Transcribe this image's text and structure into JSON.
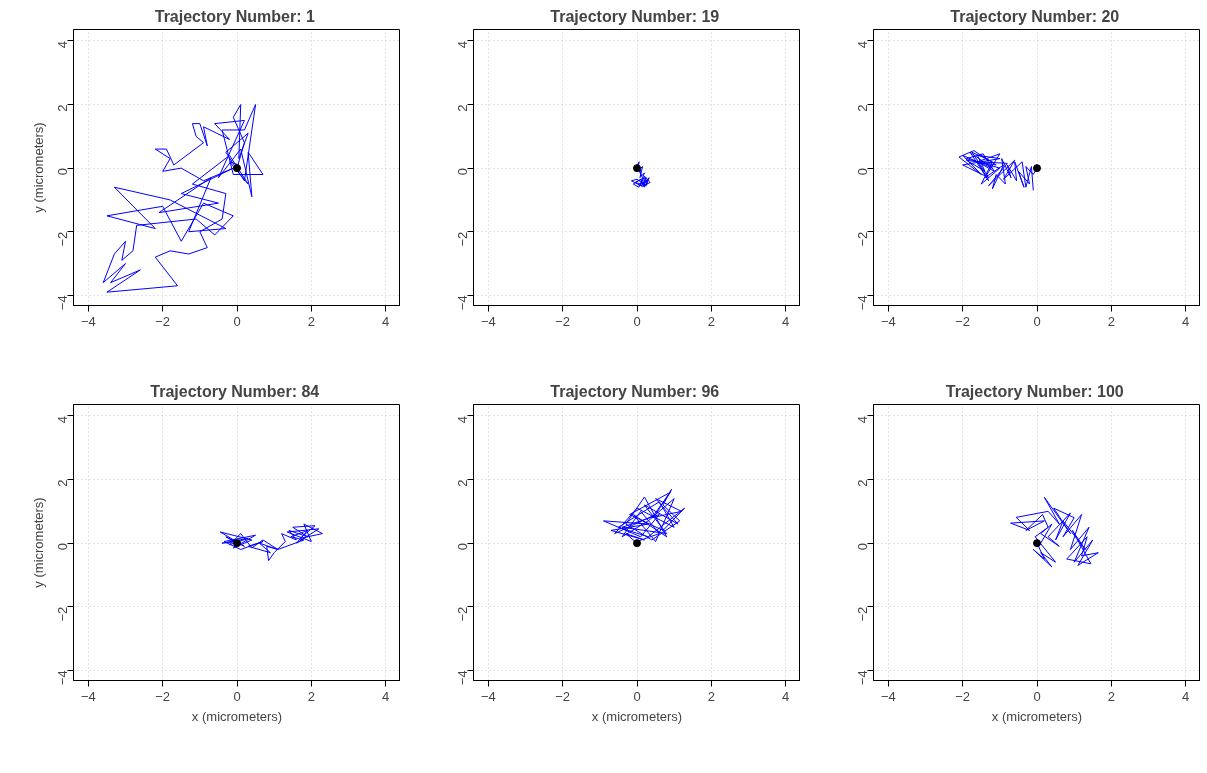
{
  "chart_data": [
    {
      "type": "line",
      "title": "Trajectory Number:  1",
      "ylabel": "y (micrometers)",
      "xlim": [
        -4.4,
        4.4
      ],
      "ylim": [
        -4.32,
        4.36
      ],
      "xticks": [
        -4,
        -2,
        0,
        2,
        4
      ],
      "yticks": [
        -4,
        -2,
        0,
        2,
        4
      ],
      "grid": true,
      "series": [
        {
          "color": "#0000ff",
          "x": [
            0,
            0.2,
            -0.1,
            0.1,
            0.05,
            0.3,
            -0.3,
            0.2,
            0.5,
            0.2,
            -0.4,
            -0.1,
            0.7,
            0.3,
            0.4,
            0.1,
            -0.5,
            0.2,
            -0.6,
            -0.2,
            -0.9,
            -0.8,
            -1.0,
            -1.2,
            -1.1,
            -0.9,
            -1.7,
            -1.9,
            -2.2,
            -1.8,
            -2.0,
            -1.5,
            -0.9,
            -0.1,
            -1.5,
            -0.5,
            -2.1,
            -0.7,
            -1.3,
            -0.3,
            -1.8,
            -3.3,
            -2.2,
            -3.5,
            -2.0,
            -1.5,
            -0.9,
            -0.1,
            -0.6,
            -1.1,
            -2.7,
            -2.8,
            -3.1,
            -3.0,
            -3.3,
            -3.6,
            -3.0,
            -3.4,
            -2.6,
            -3.5,
            -1.6,
            -2.2,
            -1.8,
            -1.3,
            -0.8,
            -1.0,
            -0.4,
            -0.3,
            -1.2,
            -0.2,
            0.3,
            -0.2,
            0.05
          ],
          "values": [
            0,
            0.8,
            1.6,
            2.0,
            0.3,
            1.1,
            0.5,
            -0.4,
            2.0,
            1.2,
            1.2,
            -0.2,
            -0.2,
            0.5,
            -0.9,
            0.6,
            -0.3,
            1.5,
            1.4,
            0.9,
            1.3,
            0.7,
            1.4,
            1.4,
            1.0,
            0.8,
            0.1,
            0.6,
            0.6,
            0.3,
            -0.1,
            0.0,
            -0.4,
            0.0,
            -0.8,
            -1.1,
            -1.4,
            -0.3,
            -2.0,
            -1.9,
            -1.0,
            -0.6,
            -1.9,
            -1.5,
            -1.2,
            -2.3,
            -1.1,
            -1.5,
            -2.1,
            -1.6,
            -1.8,
            -2.6,
            -2.9,
            -2.3,
            -2.7,
            -3.6,
            -3.0,
            -3.6,
            -3.2,
            -3.9,
            -3.7,
            -2.8,
            -2.6,
            -2.7,
            -2.5,
            -2.0,
            -1.6,
            -0.8,
            -0.5,
            0.4,
            -0.5,
            0.2,
            0.1
          ]
        },
        {
          "type": "scatter",
          "color": "#000000",
          "marker": "circle",
          "x": [
            0
          ],
          "values": [
            0
          ]
        }
      ]
    },
    {
      "type": "line",
      "title": "Trajectory Number:  19",
      "xlim": [
        -4.4,
        4.4
      ],
      "ylim": [
        -4.32,
        4.36
      ],
      "xticks": [
        -4,
        -2,
        0,
        2,
        4
      ],
      "yticks": [
        -4,
        -2,
        0,
        2,
        4
      ],
      "grid": true,
      "series": [
        {
          "color": "#0000ff",
          "x": [
            0,
            0.05,
            -0.02,
            0.06,
            0.0,
            0.1,
            0.03,
            0.12,
            0.05,
            0.15,
            0.08,
            0.2,
            0.1,
            0.25,
            0.12,
            0.3,
            0.15,
            0.33,
            0.2,
            0.1,
            -0.1,
            0.05,
            0.2,
            0.35,
            0.15,
            -0.15,
            0.0,
            0.25,
            0.3,
            0.1,
            -0.05,
            0.2,
            0.28,
            0.05,
            0.15
          ],
          "values": [
            0,
            0.15,
            -0.05,
            0.2,
            0.08,
            -0.1,
            0.12,
            -0.25,
            -0.05,
            0.05,
            -0.3,
            -0.15,
            -0.45,
            -0.3,
            -0.55,
            -0.4,
            -0.5,
            -0.3,
            -0.6,
            -0.35,
            -0.5,
            -0.6,
            -0.25,
            -0.45,
            -0.58,
            -0.4,
            -0.35,
            -0.55,
            -0.35,
            -0.5,
            -0.45,
            -0.3,
            -0.5,
            -0.55,
            -0.45
          ]
        },
        {
          "type": "scatter",
          "color": "#000000",
          "marker": "circle",
          "x": [
            0
          ],
          "values": [
            0
          ]
        }
      ]
    },
    {
      "type": "line",
      "title": "Trajectory Number:  20",
      "xlim": [
        -4.4,
        4.4
      ],
      "ylim": [
        -4.32,
        4.36
      ],
      "xticks": [
        -4,
        -2,
        0,
        2,
        4
      ],
      "yticks": [
        -4,
        -2,
        0,
        2,
        4
      ],
      "grid": true,
      "series": [
        {
          "color": "#0000ff",
          "x": [
            0,
            -0.1,
            -0.3,
            -0.2,
            -0.5,
            -0.35,
            -0.6,
            -0.55,
            -0.8,
            -0.7,
            -0.95,
            -0.85,
            -1.1,
            -1.2,
            -0.9,
            -1.4,
            -1.0,
            -1.6,
            -1.3,
            -1.8,
            -1.2,
            -2.0,
            -1.5,
            -2.1,
            -1.7,
            -1.1,
            -1.9,
            -1.4,
            -1.6,
            -1.0,
            -2.0,
            -1.3,
            -1.75,
            -1.2,
            -1.5,
            -1.0,
            -1.9,
            -1.45,
            -1.15,
            -1.6,
            -0.8,
            -1.3,
            -0.6,
            -0.9,
            -0.4,
            -0.3,
            -0.15,
            -0.1
          ],
          "values": [
            0,
            -0.2,
            0.05,
            -0.5,
            -0.1,
            -0.6,
            0.2,
            -0.4,
            0.1,
            -0.3,
            0.3,
            -0.5,
            -0.2,
            -0.65,
            0.1,
            -0.3,
            0.45,
            0.2,
            -0.4,
            0.5,
            0.0,
            0.4,
            -0.2,
            0.35,
            0.55,
            0.1,
            0.25,
            -0.1,
            0.4,
            0.3,
            0.1,
            -0.3,
            0.5,
            0.2,
            -0.5,
            0.0,
            0.3,
            0.45,
            -0.1,
            0.2,
            0.15,
            -0.55,
            0.25,
            -0.35,
            0.2,
            -0.6,
            0.05,
            -0.7
          ]
        },
        {
          "type": "scatter",
          "color": "#000000",
          "marker": "circle",
          "x": [
            0
          ],
          "values": [
            0
          ]
        }
      ]
    },
    {
      "type": "line",
      "title": "Trajectory Number:  84",
      "xlabel": "x (micrometers)",
      "ylabel": "y (micrometers)",
      "xlim": [
        -4.4,
        4.4
      ],
      "ylim": [
        -4.32,
        4.36
      ],
      "xticks": [
        -4,
        -2,
        0,
        2,
        4
      ],
      "yticks": [
        -4,
        -2,
        0,
        2,
        4
      ],
      "grid": true,
      "series": [
        {
          "color": "#0000ff",
          "x": [
            0,
            -0.3,
            0.2,
            -0.45,
            0.4,
            -0.1,
            0.5,
            -0.35,
            0.1,
            0.7,
            0.3,
            0.9,
            0.6,
            1.1,
            0.8,
            0.85,
            1.0,
            1.3,
            1.2,
            1.6,
            1.4,
            1.9,
            1.5,
            2.1,
            1.7,
            2.3,
            1.8,
            2.0,
            1.35,
            2.2,
            1.6,
            1.9,
            1.45,
            1.8,
            1.1,
            0.7,
            0.4,
            0.1,
            -0.2,
            0.3,
            -0.4,
            0.0
          ],
          "values": [
            0,
            0.2,
            -0.1,
            0.35,
            0.1,
            -0.15,
            0.25,
            0.05,
            -0.2,
            0.05,
            -0.1,
            -0.3,
            0.0,
            -0.2,
            -0.1,
            -0.55,
            -0.3,
            0.05,
            0.3,
            0.1,
            0.4,
            0.2,
            0.5,
            0.55,
            0.15,
            0.3,
            0.6,
            0.05,
            0.35,
            0.45,
            0.0,
            0.4,
            0.2,
            0.1,
            -0.2,
            0.1,
            -0.15,
            0.3,
            -0.05,
            0.15,
            0.0,
            0.05
          ]
        },
        {
          "type": "scatter",
          "color": "#000000",
          "marker": "circle",
          "x": [
            0
          ],
          "values": [
            0
          ]
        }
      ]
    },
    {
      "type": "line",
      "title": "Trajectory Number:  96",
      "xlabel": "x (micrometers)",
      "xlim": [
        -4.4,
        4.4
      ],
      "ylim": [
        -4.32,
        4.36
      ],
      "xticks": [
        -4,
        -2,
        0,
        2,
        4
      ],
      "yticks": [
        -4,
        -2,
        0,
        2,
        4
      ],
      "grid": true,
      "series": [
        {
          "color": "#0000ff",
          "x": [
            0,
            -0.3,
            0.2,
            -0.7,
            0.3,
            -0.9,
            0.1,
            0.6,
            -0.4,
            0.8,
            0.2,
            1.1,
            0.5,
            1.2,
            0.4,
            0.9,
            -0.2,
            0.7,
            1.28,
            0.3,
            -0.5,
            0.6,
            1.0,
            0.0,
            -0.6,
            0.5,
            0.93,
            0.7,
            1.15,
            0.4,
            -0.3,
            0.2,
            0.8,
            -0.1,
            0.5,
            1.0,
            0.3,
            -0.4,
            0.1,
            0.6,
            0.0
          ],
          "values": [
            0,
            0.3,
            0.1,
            0.4,
            0.6,
            0.7,
            0.2,
            0.9,
            0.5,
            0.3,
            1.2,
            0.6,
            1.4,
            1.0,
            0.8,
            1.6,
            0.9,
            0.4,
            1.1,
            0.2,
            0.5,
            1.3,
            0.5,
            1.1,
            0.3,
            0.9,
            1.69,
            1.2,
            0.7,
            0.1,
            0.6,
            1.45,
            0.2,
            0.9,
            0.05,
            1.4,
            0.7,
            0.2,
            1.0,
            0.3,
            0.05
          ]
        },
        {
          "type": "scatter",
          "color": "#000000",
          "marker": "circle",
          "x": [
            0
          ],
          "values": [
            0
          ]
        }
      ]
    },
    {
      "type": "line",
      "title": "Trajectory Number:  100",
      "xlabel": "x (micrometers)",
      "xlim": [
        -4.4,
        4.4
      ],
      "ylim": [
        -4.32,
        4.36
      ],
      "xticks": [
        -4,
        -2,
        0,
        2,
        4
      ],
      "yticks": [
        -4,
        -2,
        0,
        2,
        4
      ],
      "grid": true,
      "series": [
        {
          "color": "#0000ff",
          "x": [
            0,
            0.2,
            -0.1,
            0.4,
            0.1,
            0.5,
            -0.05,
            0.3,
            0.15,
            -0.3,
            0.2,
            -0.71,
            -0.2,
            -0.56,
            0.3,
            0.6,
            0.2,
            0.9,
            0.45,
            1.0,
            0.7,
            1.2,
            0.9,
            1.4,
            1.0,
            1.5,
            1.1,
            1.65,
            1.2,
            1.35,
            0.8,
            1.45,
            0.95,
            1.3,
            0.7,
            0.5,
            0.9,
            0.3,
            0.6,
            0.1,
            0.4,
            0.05
          ],
          "values": [
            0,
            -0.5,
            -0.2,
            -0.75,
            -0.3,
            -0.6,
            0.2,
            0.5,
            0.9,
            0.4,
            0.7,
            0.63,
            0.4,
            0.81,
            1.0,
            0.6,
            1.44,
            0.3,
            1.1,
            0.8,
            0.2,
            0.9,
            -0.2,
            0.5,
            -0.6,
            0.1,
            -0.7,
            -0.3,
            -0.4,
            0.2,
            -0.5,
            -0.65,
            0.4,
            -0.2,
            0.7,
            0.1,
            0.95,
            0.2,
            -0.1,
            0.3,
            0.6,
            -0.1
          ]
        },
        {
          "type": "scatter",
          "color": "#000000",
          "marker": "circle",
          "x": [
            0
          ],
          "values": [
            0
          ]
        }
      ]
    }
  ]
}
